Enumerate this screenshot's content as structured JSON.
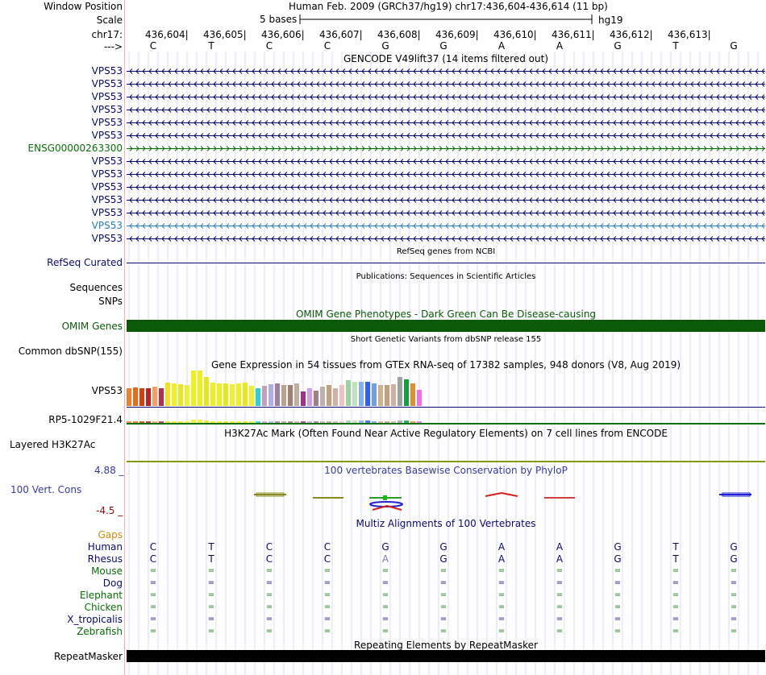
{
  "header": {
    "window_position_label": "Window Position",
    "scale_label": "Scale",
    "chrom_label": "chr17:",
    "strand_label": "--->",
    "title": "Human Feb. 2009 (GRCh37/hg19)   chr17:436,604-436,614 (11 bp)",
    "scale_text": "5 bases",
    "assembly": "hg19",
    "coordinates": [
      "436,604",
      "436,605",
      "436,606",
      "436,607",
      "436,608",
      "436,609",
      "436,610",
      "436,611",
      "436,612",
      "436,613"
    ],
    "bases": [
      "C",
      "T",
      "C",
      "C",
      "G",
      "G",
      "A",
      "A",
      "G",
      "T",
      "G"
    ]
  },
  "gencode": {
    "title": "GENCODE V49lift37 (14 items filtered out)",
    "items": [
      {
        "label": "VPS53",
        "strand": "minus",
        "color": "#0a0a6e"
      },
      {
        "label": "VPS53",
        "strand": "minus",
        "color": "#0a0a6e"
      },
      {
        "label": "VPS53",
        "strand": "minus",
        "color": "#0a0a6e"
      },
      {
        "label": "VPS53",
        "strand": "minus",
        "color": "#0a0a6e"
      },
      {
        "label": "VPS53",
        "strand": "minus",
        "color": "#0a0a6e"
      },
      {
        "label": "VPS53",
        "strand": "minus",
        "color": "#0a0a6e"
      },
      {
        "label": "ENSG00000263300",
        "strand": "plus",
        "color": "#0a6e0a"
      },
      {
        "label": "VPS53",
        "strand": "minus",
        "color": "#0a0a6e"
      },
      {
        "label": "VPS53",
        "strand": "minus",
        "color": "#0a0a6e"
      },
      {
        "label": "VPS53",
        "strand": "minus",
        "color": "#0a0a6e"
      },
      {
        "label": "VPS53",
        "strand": "minus",
        "color": "#0a0a6e"
      },
      {
        "label": "VPS53",
        "strand": "minus",
        "color": "#0a0a6e"
      },
      {
        "label": "VPS53",
        "strand": "minus",
        "color": "#2a7fbf"
      },
      {
        "label": "VPS53",
        "strand": "minus",
        "color": "#0a0a6e"
      }
    ]
  },
  "refseq": {
    "title": "RefSeq genes from NCBI",
    "label": "RefSeq Curated"
  },
  "publications": {
    "title": "Publications: Sequences in Scientific Articles",
    "label": "Sequences"
  },
  "snps": {
    "label": "SNPs"
  },
  "omim": {
    "title": "OMIM Gene Phenotypes - Dark Green Can Be Disease-causing",
    "label": "OMIM Genes",
    "color": "#0a5a0a"
  },
  "dbsnp": {
    "title": "Short Genetic Variants from dbSNP release 155",
    "label": "Common dbSNP(155)"
  },
  "gtex": {
    "title": "Gene Expression in 54 tissues from GTEx RNA-seq of 17382 samples, 948 donors (V8, Aug 2019)",
    "gene1": "VPS53",
    "gene2": "RP5-1029F21.4",
    "bars": [
      {
        "c": "#f08030",
        "h": 22
      },
      {
        "c": "#e07020",
        "h": 23
      },
      {
        "c": "#d04010",
        "h": 22
      },
      {
        "c": "#c02020",
        "h": 22
      },
      {
        "c": "#f4a060",
        "h": 24
      },
      {
        "c": "#b03050",
        "h": 22
      },
      {
        "c": "#f0e020",
        "h": 29
      },
      {
        "c": "#f0f020",
        "h": 28
      },
      {
        "c": "#e8e820",
        "h": 27
      },
      {
        "c": "#f0f030",
        "h": 26
      },
      {
        "c": "#f0f020",
        "h": 44
      },
      {
        "c": "#f0f020",
        "h": 44
      },
      {
        "c": "#e8e820",
        "h": 36
      },
      {
        "c": "#f0f020",
        "h": 29
      },
      {
        "c": "#f0f020",
        "h": 28
      },
      {
        "c": "#e8e820",
        "h": 28
      },
      {
        "c": "#f0f030",
        "h": 27
      },
      {
        "c": "#f0f020",
        "h": 28
      },
      {
        "c": "#e8e820",
        "h": 29
      },
      {
        "c": "#f0f030",
        "h": 25
      },
      {
        "c": "#30d0d0",
        "h": 22
      },
      {
        "c": "#c0a0c0",
        "h": 25
      },
      {
        "c": "#b0b0e0",
        "h": 27
      },
      {
        "c": "#a080a0",
        "h": 28
      },
      {
        "c": "#c0a090",
        "h": 26
      },
      {
        "c": "#a08070",
        "h": 26
      },
      {
        "c": "#c0b0a0",
        "h": 28
      },
      {
        "c": "#a03090",
        "h": 18
      },
      {
        "c": "#d0a0e0",
        "h": 22
      },
      {
        "c": "#a08080",
        "h": 19
      },
      {
        "c": "#c0b0b0",
        "h": 24
      },
      {
        "c": "#c0a080",
        "h": 26
      },
      {
        "c": "#d0b0a0",
        "h": 22
      },
      {
        "c": "#f0c0c0",
        "h": 26
      },
      {
        "c": "#a0d0a0",
        "h": 32
      },
      {
        "c": "#c0e0c0",
        "h": 30
      },
      {
        "c": "#80b0f0",
        "h": 30
      },
      {
        "c": "#3060f0",
        "h": 30
      },
      {
        "c": "#70a0e0",
        "h": 28
      },
      {
        "c": "#d0b090",
        "h": 26
      },
      {
        "c": "#c0a080",
        "h": 26
      },
      {
        "c": "#d0b0a0",
        "h": 27
      },
      {
        "c": "#a0a0a0",
        "h": 36
      },
      {
        "c": "#10a040",
        "h": 33
      },
      {
        "c": "#e09030",
        "h": 28
      },
      {
        "c": "#f070e0",
        "h": 20
      }
    ]
  },
  "h3k27ac": {
    "title": "H3K27Ac Mark (Often Found Near Active Regulatory Elements) on 7 cell lines from ENCODE",
    "label": "Layered H3K27Ac"
  },
  "phylop": {
    "title": "100 vertebrates Basewise Conservation by PhyloP",
    "label": "100 Vert. Cons",
    "max": "4.88 _",
    "min": "-4.5 _"
  },
  "multiz": {
    "title": "Multiz Alignments of 100 Vertebrates",
    "gaps_label": "Gaps",
    "species": [
      {
        "name": "Human",
        "color": "#0a0a6e",
        "seq": [
          "C",
          "T",
          "C",
          "C",
          "G",
          "G",
          "A",
          "A",
          "G",
          "T",
          "G"
        ]
      },
      {
        "name": "Rhesus",
        "color": "#0a0a6e",
        "seq": [
          "C",
          "T",
          "C",
          "C",
          "A",
          "G",
          "A",
          "A",
          "G",
          "T",
          "G"
        ]
      },
      {
        "name": "Mouse",
        "color": "#0a6e0a",
        "seq": [
          "=",
          "=",
          "=",
          "=",
          "=",
          "=",
          "=",
          "=",
          "=",
          "=",
          "="
        ]
      },
      {
        "name": "Dog",
        "color": "#0a0a6e",
        "seq": [
          "=",
          "=",
          "=",
          "=",
          "=",
          "=",
          "=",
          "=",
          "=",
          "=",
          "="
        ]
      },
      {
        "name": "Elephant",
        "color": "#0a6e0a",
        "seq": [
          "=",
          "=",
          "=",
          "=",
          "=",
          "=",
          "=",
          "=",
          "=",
          "=",
          "="
        ]
      },
      {
        "name": "Chicken",
        "color": "#0a6e0a",
        "seq": [
          "=",
          "=",
          "=",
          "=",
          "=",
          "=",
          "=",
          "=",
          "=",
          "=",
          "="
        ]
      },
      {
        "name": "X_tropicalis",
        "color": "#0a0a6e",
        "seq": [
          "=",
          "=",
          "=",
          "=",
          "=",
          "=",
          "=",
          "=",
          "=",
          "=",
          "="
        ]
      },
      {
        "name": "Zebrafish",
        "color": "#0a6e0a",
        "seq": [
          "=",
          "=",
          "=",
          "=",
          "=",
          "=",
          "=",
          "=",
          "=",
          "=",
          "="
        ]
      }
    ]
  },
  "repeatmasker": {
    "title": "Repeating Elements by RepeatMasker",
    "label": "RepeatMasker"
  }
}
